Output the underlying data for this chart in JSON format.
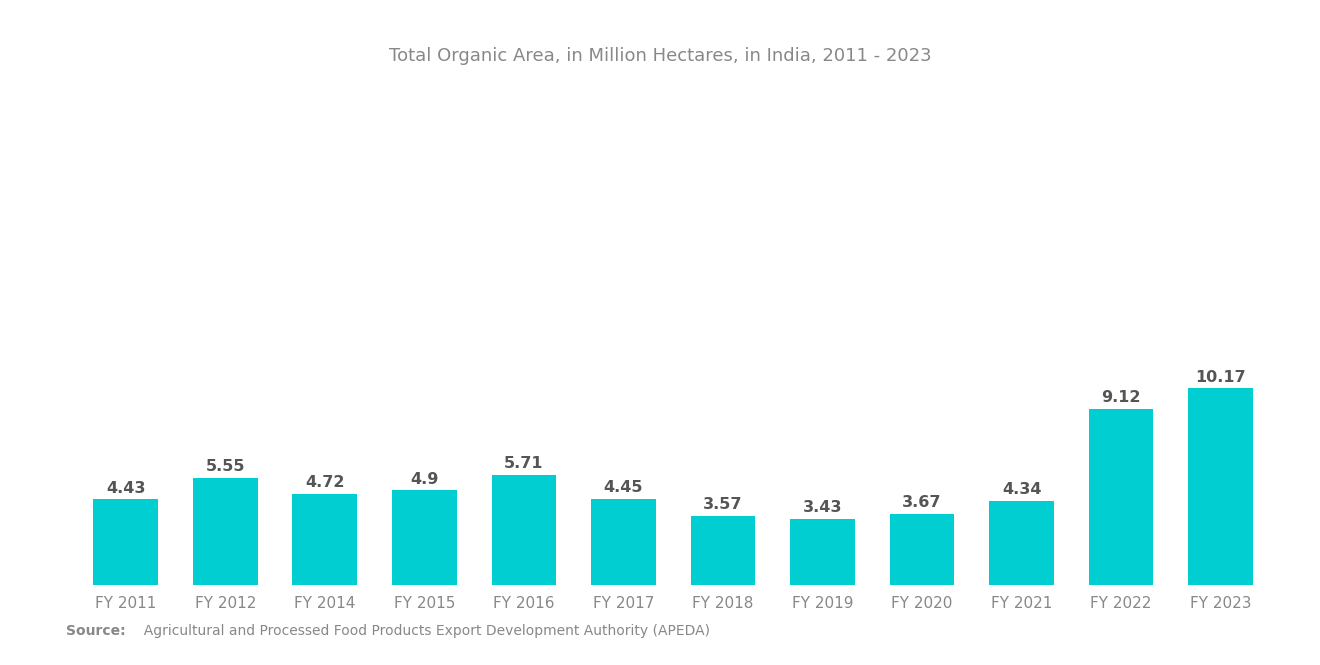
{
  "title": "Total Organic Area, in Million Hectares, in India, 2011 - 2023",
  "categories": [
    "FY 2011",
    "FY 2012",
    "FY 2014",
    "FY 2015",
    "FY 2016",
    "FY 2017",
    "FY 2018",
    "FY 2019",
    "FY 2020",
    "FY 2021",
    "FY 2022",
    "FY 2023"
  ],
  "values": [
    4.43,
    5.55,
    4.72,
    4.9,
    5.71,
    4.45,
    3.57,
    3.43,
    3.67,
    4.34,
    9.12,
    10.17
  ],
  "bar_color": "#00CED1",
  "title_color": "#888888",
  "label_color": "#555555",
  "xtick_color": "#888888",
  "source_bold": "Source:",
  "source_text": "  Agricultural and Processed Food Products Export Development Authority (APEDA)",
  "source_color": "#888888",
  "background_color": "#ffffff",
  "title_fontsize": 13,
  "label_fontsize": 11.5,
  "xtick_fontsize": 11,
  "source_fontsize": 10,
  "ylim": [
    0,
    16.5
  ]
}
